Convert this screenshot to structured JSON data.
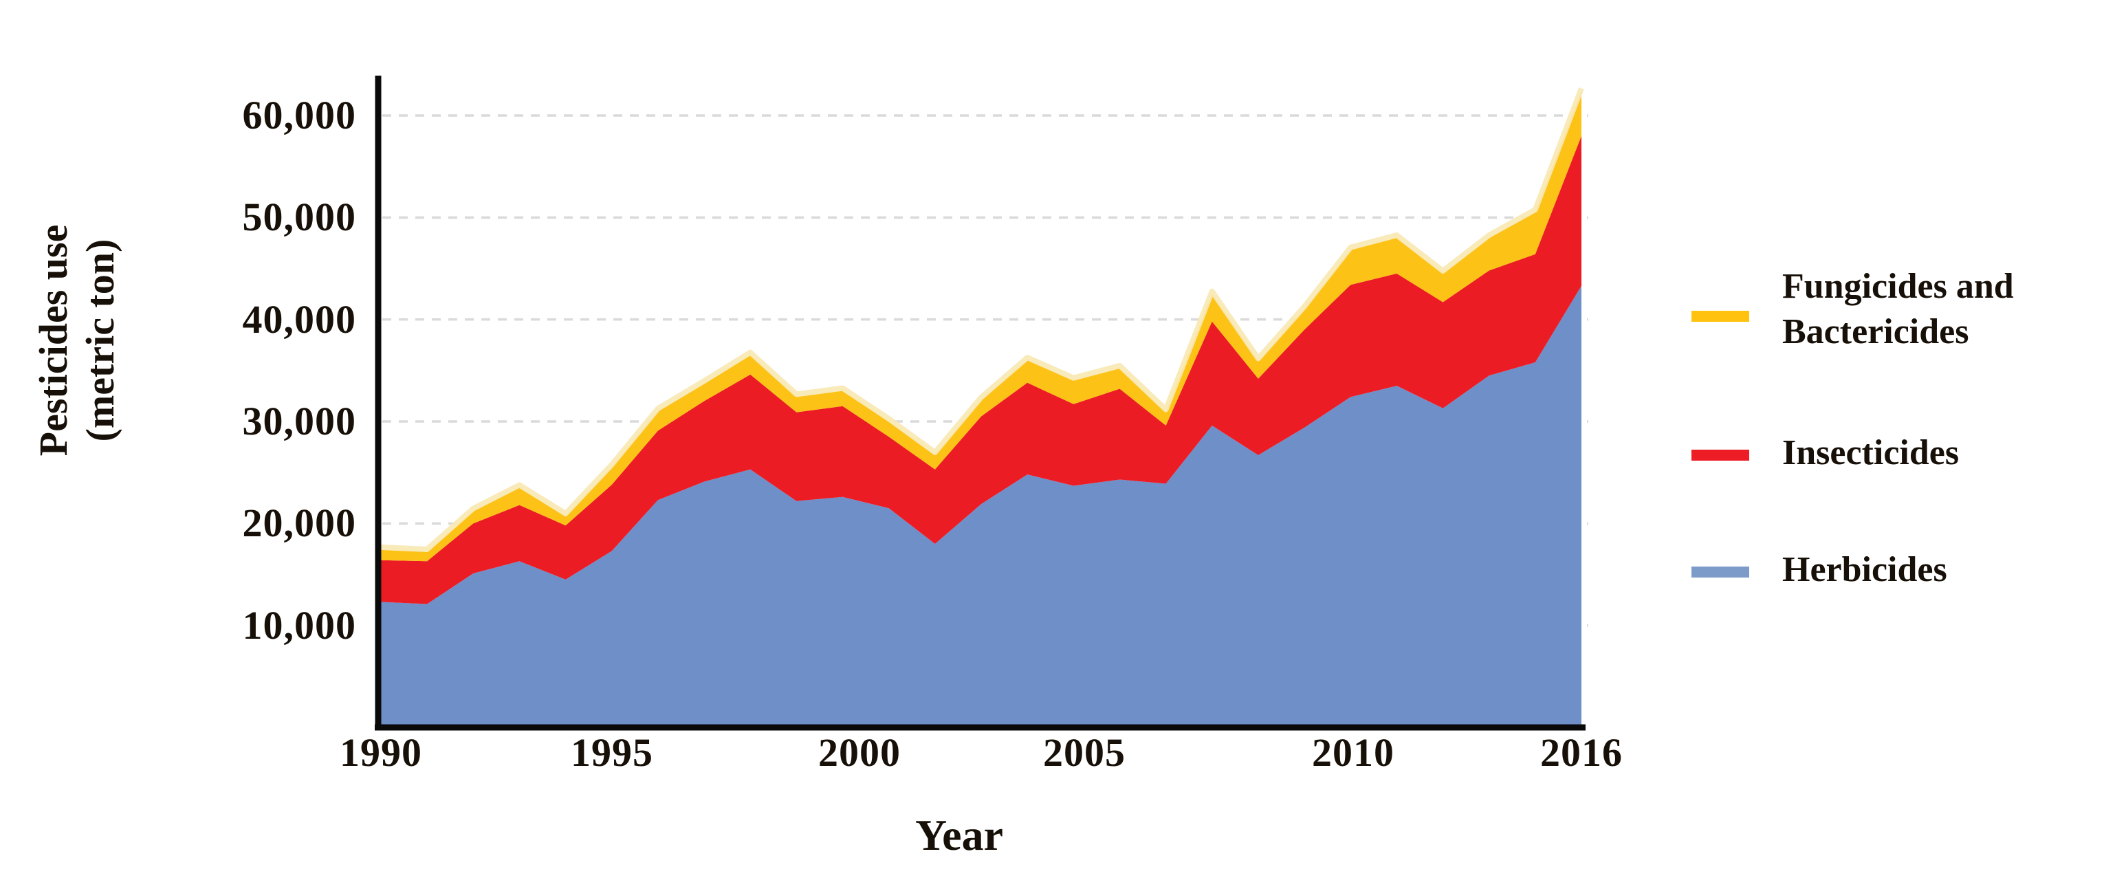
{
  "chart_data": {
    "type": "area",
    "stacked": true,
    "title": "",
    "xlabel": "Year",
    "ylabel": "Pesticides use (metric ton)",
    "ylabel_lines": [
      "Pesticides use",
      "(metric ton)"
    ],
    "unit": "metric ton",
    "grid": "horizontal-dashed",
    "legend_position": "right",
    "xlim": [
      1990,
      2016
    ],
    "ylim": [
      0,
      63500
    ],
    "x": [
      1990,
      1991,
      1992,
      1993,
      1994,
      1995,
      1996,
      1997,
      1998,
      1999,
      2000,
      2001,
      2002,
      2003,
      2004,
      2005,
      2006,
      2007,
      2008,
      2009,
      2010,
      2011,
      2012,
      2013,
      2014,
      2015,
      2016
    ],
    "x_tick_labels": [
      "1990",
      "1995",
      "2000",
      "2005",
      "2010",
      "2016"
    ],
    "x_tick_years": [
      1990,
      1995,
      2000,
      2005,
      2010,
      2016
    ],
    "y_tick_labels": [
      "10,000",
      "20,000",
      "30,000",
      "40,000",
      "50,000",
      "60,000"
    ],
    "y_tick_values": [
      10000,
      20000,
      30000,
      40000,
      50000,
      60000
    ],
    "series": [
      {
        "name": "Herbicides",
        "color": "#6F8FC9",
        "values": [
          12300,
          12100,
          15100,
          16300,
          14500,
          17300,
          22300,
          24100,
          25300,
          22200,
          22600,
          21500,
          18000,
          21900,
          24800,
          23700,
          24300,
          23900,
          29600,
          26700,
          29400,
          32400,
          33500,
          31300,
          34500,
          35800,
          43300
        ]
      },
      {
        "name": "Insecticides",
        "color": "#EC1C24",
        "values": [
          4100,
          4200,
          4900,
          5500,
          5300,
          6500,
          6800,
          7900,
          9300,
          8700,
          8900,
          7000,
          7300,
          8600,
          9000,
          8000,
          8900,
          5700,
          10200,
          7500,
          9600,
          11000,
          11000,
          10400,
          10300,
          10600,
          14700
        ]
      },
      {
        "name": "Fungicides and Bactericides",
        "color": "#FDC216",
        "values": [
          1000,
          900,
          1200,
          1700,
          900,
          1700,
          1900,
          1700,
          1900,
          1500,
          1500,
          1500,
          1400,
          1600,
          2200,
          2300,
          2000,
          1300,
          2700,
          1700,
          2000,
          3400,
          3500,
          2800,
          3200,
          4100,
          4400
        ]
      }
    ],
    "fungicides_halo_color": "#F8E8B2",
    "gridline_color": "#DADADA",
    "axis_color": "#0a0a0a"
  },
  "legend": {
    "entries": [
      {
        "label": "Fungicides and Bactericides",
        "color": "#FFC20E"
      },
      {
        "label": "Insecticides",
        "color": "#EE1C25"
      },
      {
        "label": "Herbicides",
        "color": "#7D9BC8"
      }
    ]
  }
}
